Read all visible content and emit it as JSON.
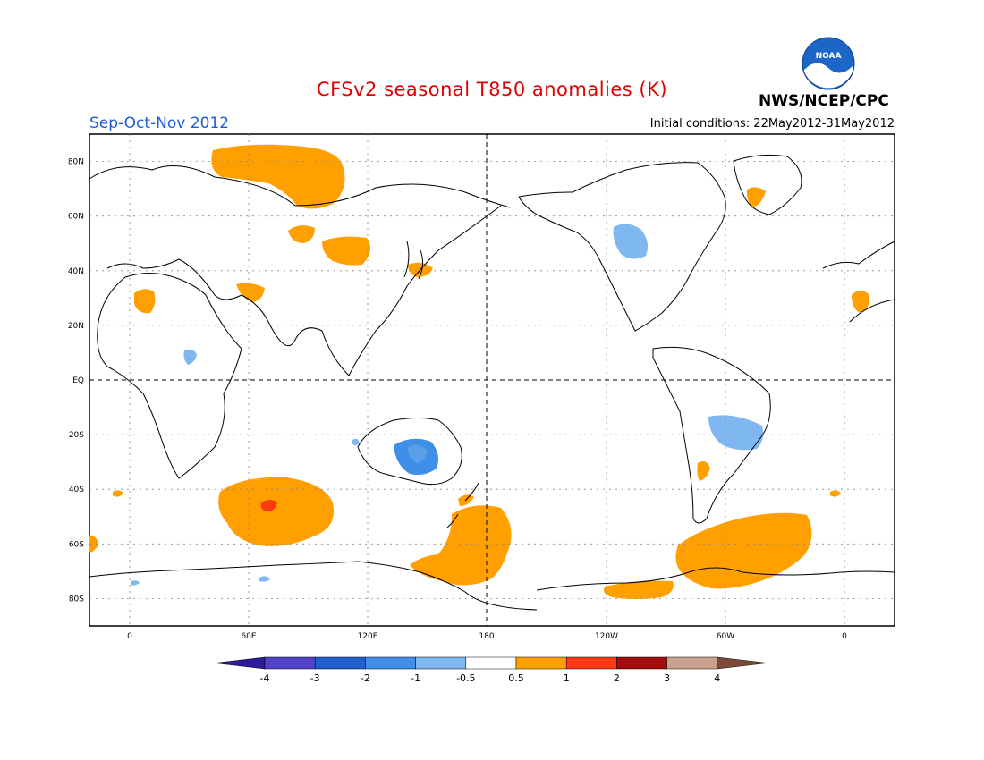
{
  "header": {
    "title": "CFSv2 seasonal T850 anomalies (K)",
    "season": "Sep-Oct-Nov 2012",
    "initial_conditions": "Initial conditions: 22May2012-31May2012",
    "agency": "NWS/NCEP/CPC",
    "logo_text": "NOAA"
  },
  "map": {
    "lat_labels": [
      "80N",
      "60N",
      "40N",
      "20N",
      "EQ",
      "20S",
      "40S",
      "60S",
      "80S"
    ],
    "lon_labels": [
      "0",
      "60E",
      "120E",
      "180",
      "120W",
      "60W",
      "0"
    ],
    "highlighted_lines": [
      "EQ",
      "180"
    ]
  },
  "colorbar": {
    "labels": [
      "-4",
      "-3",
      "-2",
      "-1",
      "-0.5",
      "0.5",
      "1",
      "2",
      "3",
      "4"
    ],
    "colors": [
      "#2e1b9c",
      "#5043c9",
      "#1f5fd0",
      "#3f8fe8",
      "#7fb7f0",
      "#ffffff",
      "#ff9f00",
      "#ff3a10",
      "#a50c0c",
      "#c9a08e",
      "#7d4a3a"
    ]
  },
  "colors": {
    "warm_anomaly": "#ff9f00",
    "strong_warm_anomaly": "#ff3a10",
    "cold_anomaly": "#7fb7f0",
    "moderate_cold_anomaly": "#3f8fe8"
  }
}
